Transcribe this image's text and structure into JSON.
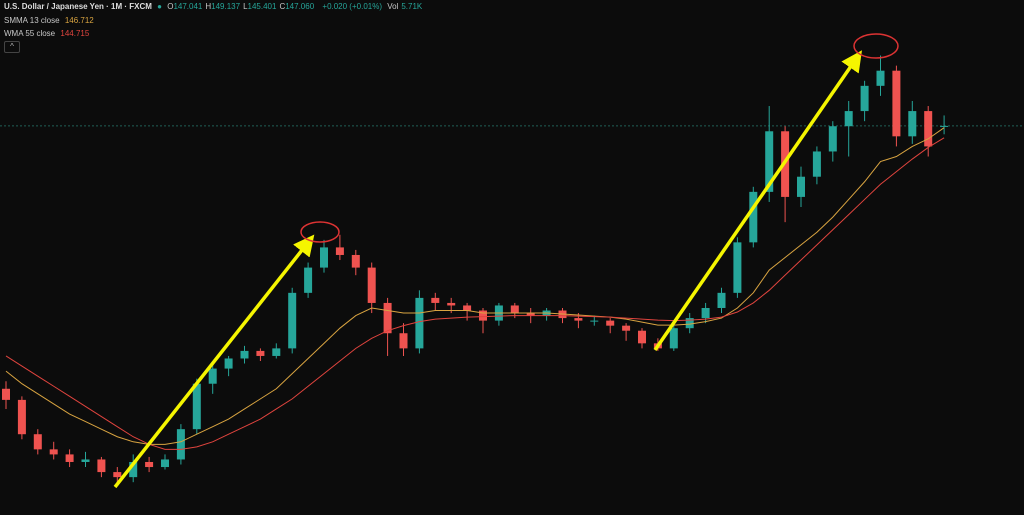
{
  "header": {
    "symbol": "U.S. Dollar / Japanese Yen · 1M · FXCM",
    "ohlc": [
      [
        "O",
        "147.041"
      ],
      [
        "H",
        "149.137"
      ],
      [
        "L",
        "145.401"
      ],
      [
        "C",
        "147.060"
      ]
    ],
    "change": "+0.020 (+0.01%)",
    "vol_label": "Vol",
    "vol": "5.71K"
  },
  "chart_data": {
    "type": "candlestick",
    "ylim": [
      70,
      172
    ],
    "up_color": "#26a69a",
    "down_color": "#ef5350",
    "candles": [
      [
        95,
        96.5,
        91,
        92.8
      ],
      [
        92.8,
        93.5,
        85,
        86
      ],
      [
        86,
        87,
        82,
        83
      ],
      [
        83,
        84.5,
        81,
        82
      ],
      [
        82,
        83,
        79.5,
        80.5
      ],
      [
        80.5,
        82.5,
        79.5,
        81
      ],
      [
        81,
        81.5,
        77.5,
        78.5
      ],
      [
        78.5,
        79.5,
        76,
        77.5
      ],
      [
        77.5,
        82,
        76.5,
        80.5
      ],
      [
        80.5,
        81.5,
        78.5,
        79.5
      ],
      [
        79.5,
        82,
        79,
        81
      ],
      [
        81,
        88,
        80,
        87
      ],
      [
        87,
        97,
        86,
        96
      ],
      [
        96,
        100,
        94,
        99
      ],
      [
        99,
        101.5,
        97.5,
        101
      ],
      [
        101,
        103.5,
        100,
        102.5
      ],
      [
        102.5,
        103,
        100.5,
        101.5
      ],
      [
        101.5,
        104,
        101,
        103
      ],
      [
        103,
        115,
        102,
        114
      ],
      [
        114,
        120,
        113,
        119
      ],
      [
        119,
        124.5,
        118,
        123
      ],
      [
        123,
        125.5,
        120.5,
        121.5
      ],
      [
        121.5,
        122.5,
        117.5,
        119
      ],
      [
        119,
        120,
        110,
        112
      ],
      [
        112,
        113,
        101.5,
        106
      ],
      [
        106,
        108,
        101.5,
        103
      ],
      [
        103,
        114.5,
        102,
        113
      ],
      [
        113,
        114,
        110.5,
        112
      ],
      [
        112,
        113,
        110,
        111.5
      ],
      [
        111.5,
        112,
        108.5,
        110.5
      ],
      [
        110.5,
        111,
        106,
        108.5
      ],
      [
        108.5,
        112,
        107.5,
        111.5
      ],
      [
        111.5,
        112,
        109,
        110
      ],
      [
        110,
        111,
        108,
        109.5
      ],
      [
        109.5,
        111,
        108.5,
        110.5
      ],
      [
        110.5,
        111,
        108,
        109
      ],
      [
        109,
        110,
        107,
        108.5
      ],
      [
        108.5,
        109.5,
        107.5,
        108.5
      ],
      [
        108.5,
        109,
        106,
        107.5
      ],
      [
        107.5,
        108,
        104.5,
        106.5
      ],
      [
        106.5,
        107,
        103,
        104
      ],
      [
        104,
        105,
        102.5,
        103
      ],
      [
        103,
        108,
        102.5,
        107
      ],
      [
        107,
        110,
        106,
        109
      ],
      [
        109,
        112,
        108,
        111
      ],
      [
        111,
        115,
        110,
        114
      ],
      [
        114,
        125,
        113,
        124
      ],
      [
        124,
        135,
        123,
        134
      ],
      [
        134,
        151,
        132,
        146
      ],
      [
        146,
        147,
        128,
        133
      ],
      [
        133,
        139,
        131,
        137
      ],
      [
        137,
        143,
        135.5,
        142
      ],
      [
        142,
        148,
        140,
        147
      ],
      [
        147,
        152,
        141,
        150
      ],
      [
        150,
        156,
        148,
        155
      ],
      [
        155,
        161,
        153,
        158
      ],
      [
        158,
        159,
        143,
        145
      ],
      [
        145,
        152,
        143.5,
        150
      ],
      [
        150,
        151,
        141,
        143
      ],
      [
        147.041,
        149.137,
        145.401,
        147.06
      ]
    ],
    "series": [
      {
        "name": "SMMA 13 close",
        "color": "#d9a441",
        "values": [
          98.5,
          96,
          94,
          92,
          90,
          88.5,
          87,
          85.5,
          84.5,
          84,
          84,
          84.5,
          86,
          87.5,
          89,
          91,
          93,
          95,
          98,
          101,
          104,
          107,
          109.5,
          111,
          110.5,
          110,
          110,
          110.5,
          110.5,
          110.5,
          110,
          110,
          110,
          110,
          110,
          109.8,
          109.6,
          109.4,
          109.2,
          108.8,
          108.2,
          107.6,
          107.6,
          107.8,
          108.3,
          109,
          111,
          114,
          118.5,
          121,
          123.5,
          126,
          129,
          132.5,
          136,
          140,
          141,
          143,
          144.5,
          146.712
        ]
      },
      {
        "name": "WMA 55 close",
        "color": "#e0443e",
        "values": [
          101.5,
          99.5,
          97.5,
          95.5,
          93.5,
          91.5,
          89.5,
          87.5,
          85.5,
          84,
          83,
          83,
          83.5,
          84.5,
          86,
          87.5,
          89,
          91,
          93,
          95.5,
          98,
          100.5,
          103,
          105,
          106.5,
          107.5,
          108.3,
          108.8,
          109,
          109.2,
          109.3,
          109.4,
          109.5,
          109.5,
          109.5,
          109.5,
          109.4,
          109.3,
          109.2,
          109,
          108.8,
          108.6,
          108.5,
          108.6,
          108.8,
          109.2,
          110.2,
          112,
          114.5,
          117.5,
          120.5,
          123.5,
          126.5,
          129.5,
          132.5,
          135.5,
          138,
          140.5,
          142.8,
          144.715
        ]
      }
    ]
  }
}
